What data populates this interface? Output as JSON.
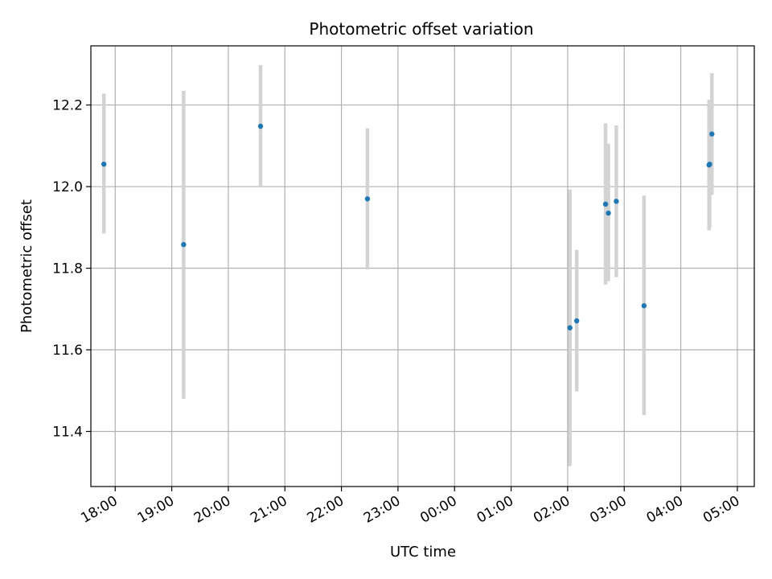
{
  "chart_data": {
    "type": "scatter",
    "title": "Photometric offset variation",
    "xlabel": "UTC time",
    "ylabel": "Photometric offset",
    "x_unit": "hours since 18:00 UTC (x labels are clock times)",
    "xlim": [
      -0.43,
      11.3
    ],
    "ylim": [
      11.265,
      12.345
    ],
    "xticks": [
      0,
      1,
      2,
      3,
      4,
      5,
      6,
      7,
      8,
      9,
      10,
      11
    ],
    "xtick_labels": [
      "18:00",
      "19:00",
      "20:00",
      "21:00",
      "22:00",
      "23:00",
      "00:00",
      "01:00",
      "02:00",
      "03:00",
      "04:00",
      "05:00"
    ],
    "yticks": [
      11.4,
      11.6,
      11.8,
      12.0,
      12.2
    ],
    "ytick_labels": [
      "11.4",
      "11.6",
      "11.8",
      "12.0",
      "12.2"
    ],
    "grid": true,
    "point_color": "#1f77b4",
    "errorbar_color": "#d3d3d3",
    "points": [
      {
        "x": -0.2,
        "y": 12.055,
        "low": 11.885,
        "high": 12.228
      },
      {
        "x": 1.21,
        "y": 11.858,
        "low": 11.48,
        "high": 12.235
      },
      {
        "x": 2.57,
        "y": 12.148,
        "low": 12.0,
        "high": 12.298
      },
      {
        "x": 4.46,
        "y": 11.97,
        "low": 11.797,
        "high": 12.143
      },
      {
        "x": 8.04,
        "y": 11.654,
        "low": 11.315,
        "high": 11.993
      },
      {
        "x": 8.16,
        "y": 11.671,
        "low": 11.498,
        "high": 11.845
      },
      {
        "x": 8.67,
        "y": 11.957,
        "low": 11.76,
        "high": 12.155
      },
      {
        "x": 8.72,
        "y": 11.935,
        "low": 11.768,
        "high": 12.105
      },
      {
        "x": 8.86,
        "y": 11.964,
        "low": 11.778,
        "high": 12.15
      },
      {
        "x": 9.35,
        "y": 11.708,
        "low": 11.44,
        "high": 11.978
      },
      {
        "x": 10.5,
        "y": 12.053,
        "low": 11.893,
        "high": 12.213
      },
      {
        "x": 10.51,
        "y": 12.055,
        "low": 11.9,
        "high": 12.21
      },
      {
        "x": 10.55,
        "y": 12.129,
        "low": 11.98,
        "high": 12.278
      }
    ]
  }
}
